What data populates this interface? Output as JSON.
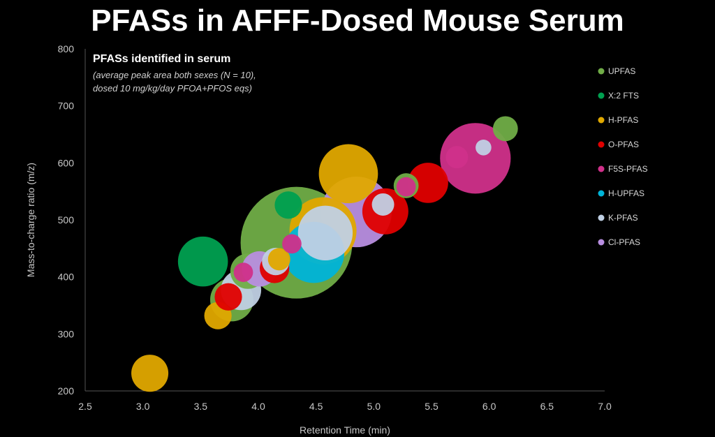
{
  "page": {
    "title": "PFASs in AFFF-Dosed Mouse Serum"
  },
  "chart_data": {
    "type": "scatter",
    "bubble": true,
    "title": "PFASs in AFFF-Dosed Mouse Serum",
    "xlabel": "Retention Time (min)",
    "ylabel": "Mass-to-charge ratio (m/z)",
    "xlim": [
      2.5,
      7.0
    ],
    "ylim": [
      200,
      800
    ],
    "xticks": [
      "2.5",
      "3.0",
      "3.5",
      "4.0",
      "4.5",
      "5.0",
      "5.5",
      "6.0",
      "6.5",
      "7.0"
    ],
    "yticks": [
      "200",
      "300",
      "400",
      "500",
      "600",
      "700",
      "800"
    ],
    "grid": false,
    "legend_position": "right",
    "annotation": {
      "title": "PFASs identified in serum",
      "line1": "(average peak area both sexes (N = 10),",
      "line2": "dosed 10 mg/kg/day PFOA+PFOS eqs)"
    },
    "series": [
      {
        "name": "UPFAS",
        "color": "#70ad47",
        "points": [
          {
            "x": 4.33,
            "y": 460,
            "size": 100
          },
          {
            "x": 3.77,
            "y": 360,
            "size": 15
          },
          {
            "x": 3.91,
            "y": 410,
            "size": 10
          },
          {
            "x": 5.28,
            "y": 560,
            "size": 5
          },
          {
            "x": 6.14,
            "y": 660,
            "size": 5
          }
        ]
      },
      {
        "name": "X:2 FTS",
        "color": "#00a050",
        "points": [
          {
            "x": 3.52,
            "y": 427,
            "size": 20
          },
          {
            "x": 4.26,
            "y": 526,
            "size": 6
          }
        ]
      },
      {
        "name": "H-PFAS",
        "color": "#e0a800",
        "points": [
          {
            "x": 3.06,
            "y": 231,
            "size": 11
          },
          {
            "x": 3.65,
            "y": 332,
            "size": 6
          },
          {
            "x": 4.18,
            "y": 431,
            "size": 4
          },
          {
            "x": 4.56,
            "y": 481,
            "size": 36
          },
          {
            "x": 4.78,
            "y": 581,
            "size": 28
          }
        ]
      },
      {
        "name": "O-PFAS",
        "color": "#e00000",
        "points": [
          {
            "x": 3.74,
            "y": 365,
            "size": 6
          },
          {
            "x": 4.14,
            "y": 415,
            "size": 7
          },
          {
            "x": 5.1,
            "y": 515,
            "size": 17
          },
          {
            "x": 5.47,
            "y": 565,
            "size": 13
          }
        ]
      },
      {
        "name": "F5S-PFAS",
        "color": "#d0308a",
        "points": [
          {
            "x": 3.87,
            "y": 408,
            "size": 3
          },
          {
            "x": 4.29,
            "y": 458,
            "size": 3
          },
          {
            "x": 5.28,
            "y": 558,
            "size": 3
          },
          {
            "x": 5.72,
            "y": 610,
            "size": 4
          },
          {
            "x": 5.88,
            "y": 608,
            "size": 40
          }
        ]
      },
      {
        "name": "H-UPFAS",
        "color": "#00b4d8",
        "points": [
          {
            "x": 4.48,
            "y": 443,
            "size": 30
          }
        ]
      },
      {
        "name": "K-PFAS",
        "color": "#c0d0e4",
        "points": [
          {
            "x": 3.85,
            "y": 377,
            "size": 13
          },
          {
            "x": 4.15,
            "y": 427,
            "size": 6
          },
          {
            "x": 4.58,
            "y": 477,
            "size": 24
          },
          {
            "x": 5.08,
            "y": 527,
            "size": 4
          },
          {
            "x": 5.95,
            "y": 627,
            "size": 2
          }
        ]
      },
      {
        "name": "Cl-PFAS",
        "color": "#b88ee0",
        "points": [
          {
            "x": 4.01,
            "y": 414,
            "size": 10
          },
          {
            "x": 4.85,
            "y": 514,
            "size": 40
          }
        ]
      }
    ]
  }
}
